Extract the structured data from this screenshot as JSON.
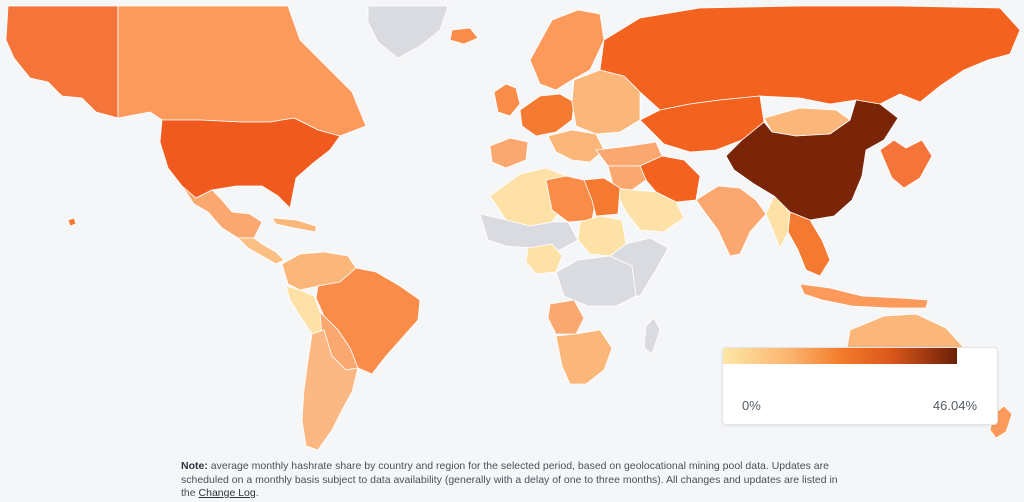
{
  "legend": {
    "min_label": "0%",
    "max_label": "46.04%",
    "colors": [
      "#fde7a6",
      "#fbb16a",
      "#f47c2c",
      "#d9571a",
      "#6b1f08"
    ]
  },
  "note": {
    "label": "Note:",
    "text": " average monthly hashrate share by country and region for the selected period, based on geolocational mining pool data. Updates are scheduled on a monthly basis subject to data availability (generally with a delay of one to three months). All changes and updates are listed in the ",
    "link_text": "Change Log",
    "end": "."
  },
  "map": {
    "nodata_color": "#dadbe0",
    "countries": [
      {
        "id": "alaska",
        "color": "#f4743a"
      },
      {
        "id": "canada",
        "color": "#fb9a5a"
      },
      {
        "id": "greenland",
        "color": "#dadbe0"
      },
      {
        "id": "usa",
        "color": "#f05a1e"
      },
      {
        "id": "mexico",
        "color": "#fba870"
      },
      {
        "id": "central-america",
        "color": "#fbbf84"
      },
      {
        "id": "caribbean",
        "color": "#fbb67a"
      },
      {
        "id": "colombia-venezuela",
        "color": "#fbb67a"
      },
      {
        "id": "peru-ecuador",
        "color": "#fde1a6"
      },
      {
        "id": "brazil",
        "color": "#f88c48"
      },
      {
        "id": "bolivia-paraguay",
        "color": "#fba870"
      },
      {
        "id": "argentina-chile",
        "color": "#fbb883"
      },
      {
        "id": "iceland",
        "color": "#f88c48"
      },
      {
        "id": "uk-ireland",
        "color": "#f88c48"
      },
      {
        "id": "scandinavia",
        "color": "#fb9a5a"
      },
      {
        "id": "western-europe",
        "color": "#f47a32"
      },
      {
        "id": "eastern-europe",
        "color": "#fbb67a"
      },
      {
        "id": "iberia",
        "color": "#fba870"
      },
      {
        "id": "italy-balkans",
        "color": "#fbb67a"
      },
      {
        "id": "turkey-caucasus",
        "color": "#fba870"
      },
      {
        "id": "russia",
        "color": "#f4621f"
      },
      {
        "id": "kazakhstan-central-asia",
        "color": "#f4621f"
      },
      {
        "id": "mongolia",
        "color": "#fbb67a"
      },
      {
        "id": "china",
        "color": "#7a2408"
      },
      {
        "id": "iran",
        "color": "#f4621f"
      },
      {
        "id": "middle-east",
        "color": "#fba870"
      },
      {
        "id": "saudi-arabia",
        "color": "#fde1a6"
      },
      {
        "id": "india",
        "color": "#fba870"
      },
      {
        "id": "southeast-asia",
        "color": "#f47a32"
      },
      {
        "id": "myanmar",
        "color": "#fde1a6"
      },
      {
        "id": "japan-korea",
        "color": "#f4743a"
      },
      {
        "id": "indonesia",
        "color": "#fb9a5a"
      },
      {
        "id": "australia",
        "color": "#fbb67a"
      },
      {
        "id": "new-zealand",
        "color": "#fb9a5a"
      },
      {
        "id": "north-africa-west",
        "color": "#fde1a6"
      },
      {
        "id": "libya",
        "color": "#f88c48"
      },
      {
        "id": "egypt",
        "color": "#f47a32"
      },
      {
        "id": "sudan",
        "color": "#fde1a6"
      },
      {
        "id": "sahel-west-africa",
        "color": "#dadbe0"
      },
      {
        "id": "nigeria-region",
        "color": "#fde1a6"
      },
      {
        "id": "central-africa",
        "color": "#dadbe0"
      },
      {
        "id": "east-africa",
        "color": "#dadbe0"
      },
      {
        "id": "angola",
        "color": "#fba870"
      },
      {
        "id": "southern-africa",
        "color": "#fbb67a"
      },
      {
        "id": "madagascar",
        "color": "#dadbe0"
      },
      {
        "id": "hawaii",
        "color": "#f47a32"
      }
    ]
  }
}
